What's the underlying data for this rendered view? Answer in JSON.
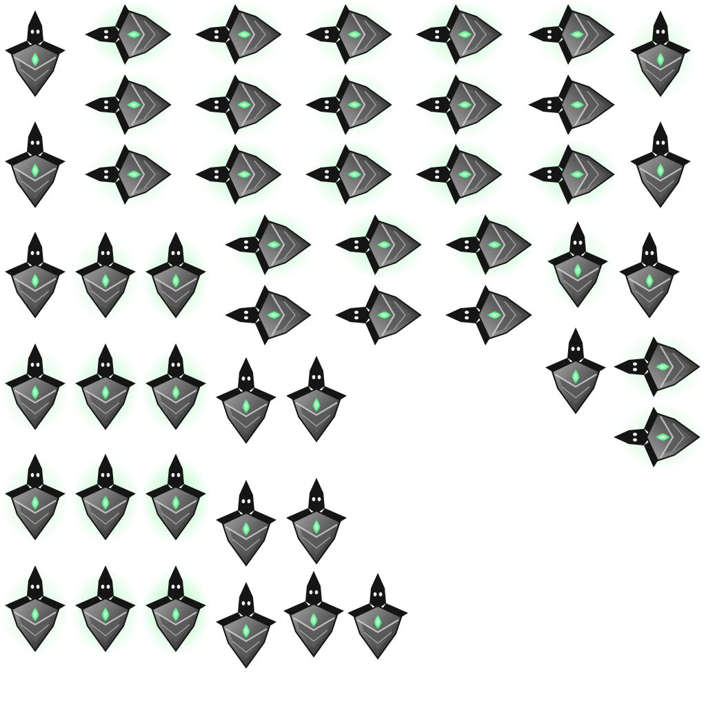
{
  "sheet": {
    "background": "#ffffff",
    "palette": {
      "glow": "#5cf07a",
      "core": "#5ee88c",
      "dark": "#151515",
      "mid": "#5a5a5a",
      "light": "#a8a8a8",
      "eye": "#f2f2f2"
    }
  },
  "sprites": [
    {
      "dir": "down",
      "glow": 0
    },
    {
      "dir": "right",
      "glow": 2
    },
    {
      "dir": "right",
      "glow": 1
    },
    {
      "dir": "right",
      "glow": 1
    },
    {
      "dir": "right",
      "glow": 2
    },
    {
      "dir": "right",
      "glow": 1
    },
    {
      "dir": "down",
      "glow": 1
    },
    {
      "dir": "right",
      "glow": 1
    },
    {
      "dir": "right",
      "glow": 1
    },
    {
      "dir": "right",
      "glow": 1
    },
    {
      "dir": "right",
      "glow": 1
    },
    {
      "dir": "right",
      "glow": 0
    },
    {
      "dir": "down",
      "glow": 0
    },
    {
      "dir": "right",
      "glow": 1
    },
    {
      "dir": "right",
      "glow": 2
    },
    {
      "dir": "right",
      "glow": 2
    },
    {
      "dir": "right",
      "glow": 2
    },
    {
      "dir": "right",
      "glow": 2
    },
    {
      "dir": "down",
      "glow": 0
    },
    {
      "dir": "down",
      "glow": 0
    },
    {
      "dir": "down",
      "glow": 1
    },
    {
      "dir": "down",
      "glow": 2
    },
    {
      "dir": "right",
      "glow": 2
    },
    {
      "dir": "right",
      "glow": 2
    },
    {
      "dir": "right",
      "glow": 2
    },
    {
      "dir": "down",
      "glow": 1
    },
    {
      "dir": "down",
      "glow": 0
    },
    {
      "dir": "right",
      "glow": 0
    },
    {
      "dir": "right",
      "glow": 0
    },
    {
      "dir": "right",
      "glow": 0
    },
    {
      "dir": "down",
      "glow": 1
    },
    {
      "dir": "down",
      "glow": 2
    },
    {
      "dir": "down",
      "glow": 2
    },
    {
      "dir": "down",
      "glow": 0
    },
    {
      "dir": "down",
      "glow": 0
    },
    {
      "dir": "down",
      "glow": 0
    },
    {
      "dir": "right",
      "glow": 1
    },
    {
      "dir": "right",
      "glow": 1
    },
    {
      "dir": "down",
      "glow": 1
    },
    {
      "dir": "down",
      "glow": 2
    },
    {
      "dir": "down",
      "glow": 3
    },
    {
      "dir": "down",
      "glow": 0
    },
    {
      "dir": "down",
      "glow": 0
    },
    {
      "dir": "down",
      "glow": 1
    },
    {
      "dir": "down",
      "glow": 2
    },
    {
      "dir": "down",
      "glow": 3
    },
    {
      "dir": "down",
      "glow": 0
    },
    {
      "dir": "down",
      "glow": 0
    },
    {
      "dir": "down",
      "glow": 0
    }
  ]
}
